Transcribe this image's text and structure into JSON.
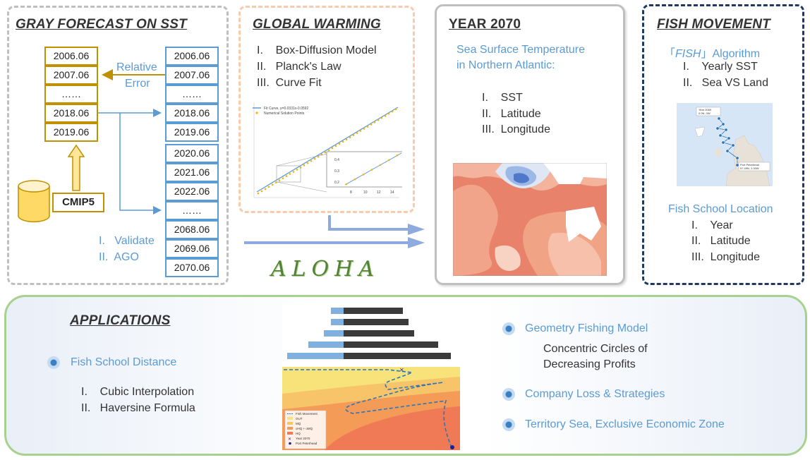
{
  "gray_forecast": {
    "title": "GRAY FORECAST ON SST",
    "left_years": [
      "2006.06",
      "2007.06",
      "……",
      "2018.06",
      "2019.06"
    ],
    "right_years_top": [
      "2006.06",
      "2007.06",
      "……",
      "2018.06",
      "2019.06"
    ],
    "right_years_bottom": [
      "2020.06",
      "2021.06",
      "2022.06",
      "……",
      "2068.06",
      "2069.06",
      "2070.06"
    ],
    "relative_error_line1": "Relative",
    "relative_error_line2": "Error",
    "source_label": "CMIP5",
    "steps": [
      "I.   Validate",
      "II.  AGO"
    ]
  },
  "global_warming": {
    "title": "GLOBAL WARMING",
    "items": [
      "I.    Box-Diffusion Model",
      "II.   Planck's Law",
      "III.  Curve Fit"
    ],
    "legend_fit": "Fit Curve, y=0.0331x-0.0592",
    "legend_points": "Numerical Solution Points",
    "inset_y_ticks": [
      "0.4",
      "0.3",
      "0.2"
    ],
    "inset_x_ticks": [
      "8",
      "10",
      "12",
      "14"
    ]
  },
  "logo": {
    "text": "ALOHA"
  },
  "year_2070": {
    "title": "YEAR 2070",
    "subtitle_line1": "Sea Surface Temperature",
    "subtitle_line2": "in Northern Atlantic:",
    "items": [
      "I.    SST",
      "II.   Latitude",
      "III.  Longitude"
    ]
  },
  "fish_movement": {
    "title": "FISH MOVEMENT",
    "algorithm_open": "「",
    "algorithm_fish": "FISH",
    "algorithm_close": "」Algorithm",
    "algo_items": [
      "I.    Yearly SST",
      "II.   Sea VS Land"
    ],
    "map_label_1a": "Year 2069",
    "map_label_1b": "0.0N, 0W",
    "map_label_2a": "Port Peterhead",
    "map_label_2b": "57.49N, 2.00W",
    "location_title": "Fish School Location",
    "location_items": [
      "I.    Year",
      "II.   Latitude",
      "III.  Longitude"
    ]
  },
  "applications": {
    "title": "APPLICATIONS",
    "fish_school_distance": "Fish School Distance",
    "fsd_items": [
      "I.    Cubic Interpolation",
      "II.   Haversine Formula"
    ],
    "geometry_model": "Geometry Fishing Model",
    "geometry_desc_line1": "Concentric Circles of",
    "geometry_desc_line2": "Decreasing Profits",
    "company_loss": "Company Loss & Strategies",
    "territory": "Territory Sea, Exclusive Economic Zone",
    "legend_items": [
      "Fish Movement",
      "OUT",
      "MQ",
      "oHQ + oMQ",
      "HQ",
      "Year 2070",
      "Port Peterhead"
    ]
  },
  "colors": {
    "gold": "#bf9000",
    "blue": "#5b9bd5",
    "navy": "#1f3864",
    "peach": "#f8cbad",
    "green": "#a9d18e"
  }
}
